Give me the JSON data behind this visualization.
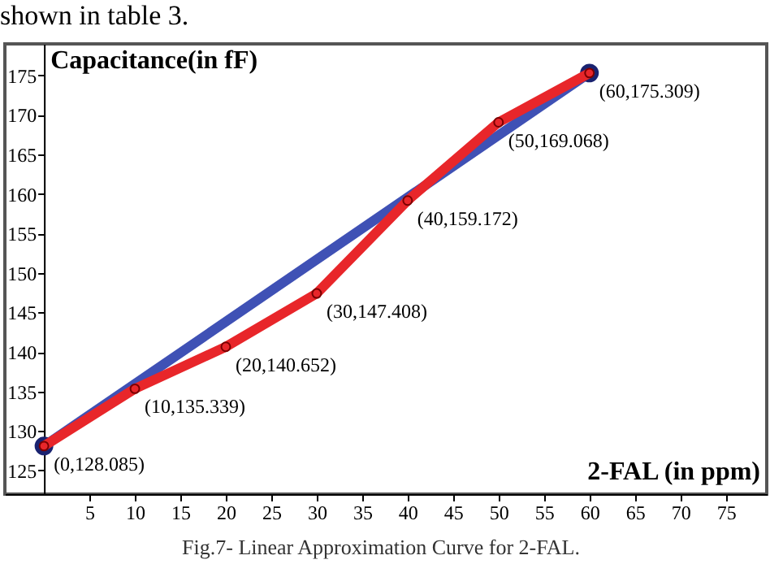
{
  "chart_data": {
    "type": "line",
    "xlabel": "2-FAL (in ppm)",
    "ylabel": "Capacitance(in fF)",
    "xlim": [
      -4.3,
      79.5
    ],
    "xticks": [
      5,
      10,
      15,
      20,
      25,
      30,
      35,
      40,
      45,
      50,
      55,
      60,
      65,
      70,
      75
    ],
    "ylim": [
      122,
      179
    ],
    "yticks": [
      125,
      130,
      135,
      140,
      145,
      150,
      155,
      160,
      165,
      170,
      175
    ],
    "grid": false,
    "series": [
      {
        "color": "#3f51b5",
        "marker": "circle",
        "x": [
          0,
          60
        ],
        "values": [
          128.085,
          175.309
        ]
      },
      {
        "color": "#e8262a",
        "marker": "circle",
        "x": [
          0,
          10,
          20,
          30,
          40,
          50,
          60
        ],
        "values": [
          128.085,
          135.339,
          140.652,
          147.408,
          159.172,
          169.068,
          175.309
        ]
      }
    ],
    "annotations": [
      "shown in table 3.",
      {
        "text": "(0,128.085)",
        "x": 0,
        "y": 128.085
      },
      {
        "text": "(10,135.339)",
        "x": 10,
        "y": 135.339
      },
      {
        "text": "(20,140.652)",
        "x": 20,
        "y": 140.652
      },
      {
        "text": "(30,147.408)",
        "x": 30,
        "y": 147.408
      },
      {
        "text": "(40,159.172)",
        "x": 40,
        "y": 159.172
      },
      {
        "text": "(50,169.068)",
        "x": 50,
        "y": 169.068
      },
      {
        "text": "(60,175.309)",
        "x": 60,
        "y": 175.309
      },
      "Fig.7- Linear Approximation Curve for 2-FAL."
    ]
  }
}
